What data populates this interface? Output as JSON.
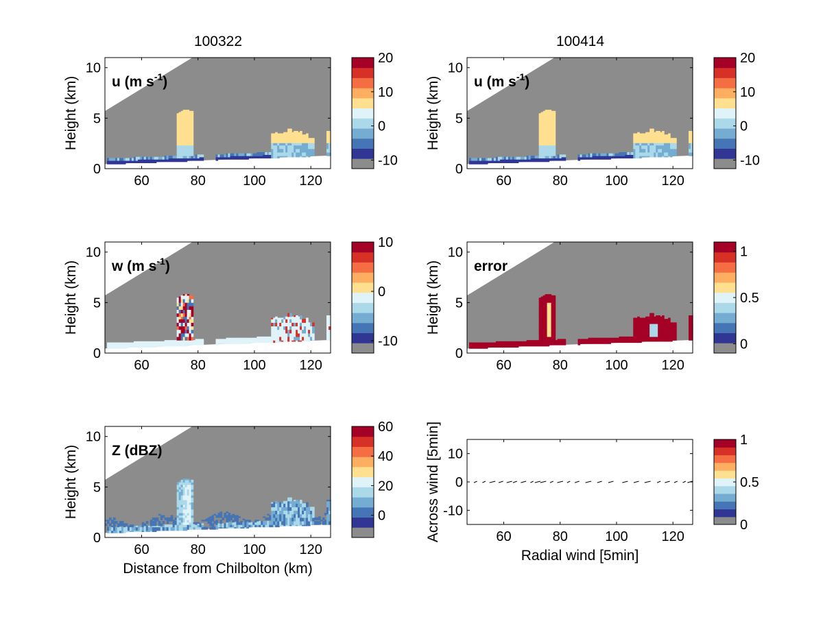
{
  "figure": {
    "column_titles": [
      "100322",
      "100414"
    ]
  },
  "colormap": [
    "#8c8c8c",
    "#313695",
    "#4575b4",
    "#74add1",
    "#abd9e9",
    "#e0f3f8",
    "#fee090",
    "#fdae61",
    "#f46d43",
    "#d73027",
    "#a50026"
  ],
  "chart_data": [
    {
      "id": "u-left",
      "type": "heatmap",
      "label": "u (m s",
      "label_sup": "-1",
      "label_end": ")",
      "ylabel": "Height (km)",
      "xlabel": "",
      "xlim": [
        47,
        127
      ],
      "ylim": [
        0,
        11
      ],
      "xticks": [
        60,
        80,
        100,
        120
      ],
      "yticks": [
        0,
        5,
        10
      ],
      "colorbar": {
        "clim": [
          -12.5,
          20
        ],
        "ticks": [
          20,
          10,
          0,
          -10
        ]
      },
      "field": "u"
    },
    {
      "id": "u-right",
      "type": "heatmap",
      "label": "u (m s",
      "label_sup": "-1",
      "label_end": ")",
      "ylabel": "Height (km)",
      "xlabel": "",
      "xlim": [
        47,
        127
      ],
      "ylim": [
        0,
        11
      ],
      "xticks": [
        60,
        80,
        100,
        120
      ],
      "yticks": [
        0,
        5,
        10
      ],
      "colorbar": {
        "clim": [
          -12.5,
          20
        ],
        "ticks": [
          20,
          10,
          0,
          -10
        ]
      },
      "field": "u"
    },
    {
      "id": "w-left",
      "type": "heatmap",
      "label": "w (m s",
      "label_sup": "-1",
      "label_end": ")",
      "ylabel": "Height (km)",
      "xlabel": "",
      "xlim": [
        47,
        127
      ],
      "ylim": [
        0,
        11
      ],
      "xticks": [
        60,
        80,
        100,
        120
      ],
      "yticks": [
        0,
        5,
        10
      ],
      "colorbar": {
        "clim": [
          -12.5,
          10
        ],
        "ticks": [
          10,
          0,
          -10
        ]
      },
      "field": "w"
    },
    {
      "id": "error-right",
      "type": "heatmap",
      "label": "error",
      "label_sup": "",
      "label_end": "",
      "ylabel": "Height (km)",
      "xlabel": "",
      "xlim": [
        47,
        127
      ],
      "ylim": [
        0,
        11
      ],
      "xticks": [
        60,
        80,
        100,
        120
      ],
      "yticks": [
        0,
        5,
        10
      ],
      "colorbar": {
        "clim": [
          -0.1,
          1.1
        ],
        "ticks": [
          1,
          0.5,
          0
        ]
      },
      "field": "error"
    },
    {
      "id": "z-left",
      "type": "heatmap",
      "label": "Z (dBZ)",
      "label_sup": "",
      "label_end": "",
      "ylabel": "Height (km)",
      "xlabel": "Distance from Chilbolton (km)",
      "xlim": [
        47,
        127
      ],
      "ylim": [
        0,
        11
      ],
      "xticks": [
        60,
        80,
        100,
        120
      ],
      "yticks": [
        0,
        5,
        10
      ],
      "colorbar": {
        "clim": [
          -15,
          60
        ],
        "ticks": [
          60,
          40,
          20,
          0
        ]
      },
      "field": "z"
    },
    {
      "id": "quiver-right",
      "type": "scatter",
      "label": "",
      "label_sup": "",
      "label_end": "",
      "ylabel": "Across wind [5min]",
      "xlabel": "Radial wind [5min]",
      "xlim": [
        47,
        127
      ],
      "ylim": [
        -15,
        15
      ],
      "xticks": [
        60,
        80,
        100,
        120
      ],
      "yticks": [
        10,
        0,
        -10
      ],
      "colorbar": {
        "clim": [
          0,
          1
        ],
        "ticks": [
          1,
          0.5,
          0
        ]
      },
      "field": "quiver",
      "arrows_x": [
        50,
        53,
        56,
        59,
        62,
        64,
        67,
        70,
        72,
        74,
        77,
        80,
        83,
        86,
        90,
        94,
        98,
        103,
        107,
        111,
        115,
        118,
        121,
        124,
        126
      ],
      "arrows_y": [
        0,
        0,
        0,
        0,
        0,
        0,
        0,
        0,
        0,
        0,
        0,
        0,
        0,
        0,
        0,
        0,
        0,
        0,
        0,
        0,
        0,
        0,
        0,
        0,
        0
      ]
    }
  ]
}
